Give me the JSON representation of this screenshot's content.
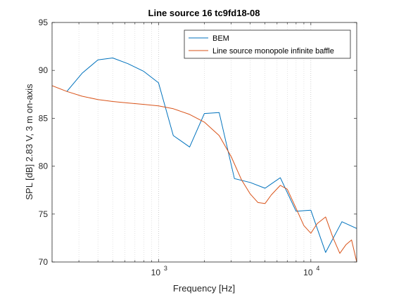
{
  "chart_data": {
    "type": "line",
    "title": "Line source 16 tc9fd18-08",
    "xlabel": "Frequency [Hz]",
    "ylabel": "SPL [dB] 2.83 V, 3 m on-axis",
    "xscale": "log",
    "xlim": [
      200,
      20000
    ],
    "ylim": [
      70,
      95
    ],
    "yticks": [
      70,
      75,
      80,
      85,
      90,
      95
    ],
    "xticks": [
      {
        "value": 1000,
        "base": "10",
        "exp": "3"
      },
      {
        "value": 10000,
        "base": "10",
        "exp": "4"
      }
    ],
    "grid": "x-minor-dotted",
    "legend_position": "top-right",
    "series": [
      {
        "name": "BEM",
        "color": "#0072BD",
        "x": [
          250,
          315,
          400,
          500,
          630,
          800,
          1000,
          1250,
          1600,
          2000,
          2500,
          3150,
          4000,
          5000,
          6300,
          8000,
          10000,
          12500,
          16000,
          20000
        ],
        "y": [
          87.8,
          89.7,
          91.1,
          91.3,
          90.7,
          89.9,
          88.7,
          83.2,
          82.0,
          85.5,
          85.6,
          78.7,
          78.3,
          77.7,
          78.8,
          75.3,
          75.4,
          71.0,
          74.2,
          73.5
        ]
      },
      {
        "name": "Line source monopole infinite baffle",
        "color": "#D95319",
        "x": [
          200,
          250,
          315,
          400,
          500,
          630,
          800,
          1000,
          1250,
          1600,
          2000,
          2500,
          3000,
          3500,
          4000,
          4500,
          5000,
          5500,
          6300,
          7000,
          8000,
          9000,
          10000,
          11000,
          12500,
          14000,
          15500,
          17000,
          18500,
          20000
        ],
        "y": [
          88.4,
          87.8,
          87.3,
          86.95,
          86.75,
          86.6,
          86.45,
          86.3,
          86.0,
          85.4,
          84.6,
          83.2,
          81.0,
          78.6,
          77.1,
          76.2,
          76.1,
          77.0,
          78.0,
          77.6,
          75.6,
          73.8,
          73.0,
          74.0,
          74.7,
          72.5,
          70.9,
          71.8,
          72.3,
          70.0
        ]
      }
    ]
  }
}
